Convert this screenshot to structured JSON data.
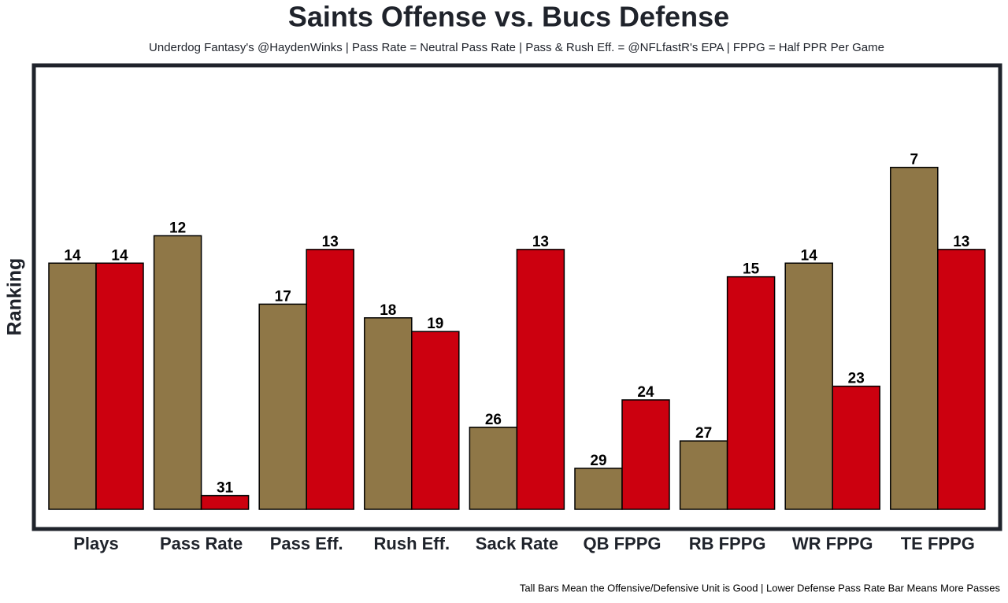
{
  "chart_data": {
    "type": "bar",
    "title": "Saints Offense vs. Bucs Defense",
    "subtitle": "Underdog Fantasy's @HaydenWinks | Pass Rate = Neutral Pass Rate | Pass & Rush Eff. = @NFLfastR's EPA | FPPG = Half PPR Per Game",
    "y_label": "Ranking",
    "note": "Tall Bars Mean the Offensive/Defensive Unit is Good | Lower Defense Pass Rate Bar Means More Passes",
    "categories": [
      "Plays",
      "Pass Rate",
      "Pass Eff.",
      "Rush Eff.",
      "Sack Rate",
      "QB FPPG",
      "RB FPPG",
      "WR FPPG",
      "TE FPPG"
    ],
    "series": [
      {
        "color": "#8f7747",
        "values": [
          14,
          12,
          17,
          18,
          26,
          29,
          27,
          14,
          7
        ]
      },
      {
        "color": "#cc000f",
        "values": [
          14,
          31,
          13,
          19,
          13,
          24,
          15,
          23,
          13
        ]
      }
    ],
    "ylim": [
      32,
      0
    ]
  }
}
